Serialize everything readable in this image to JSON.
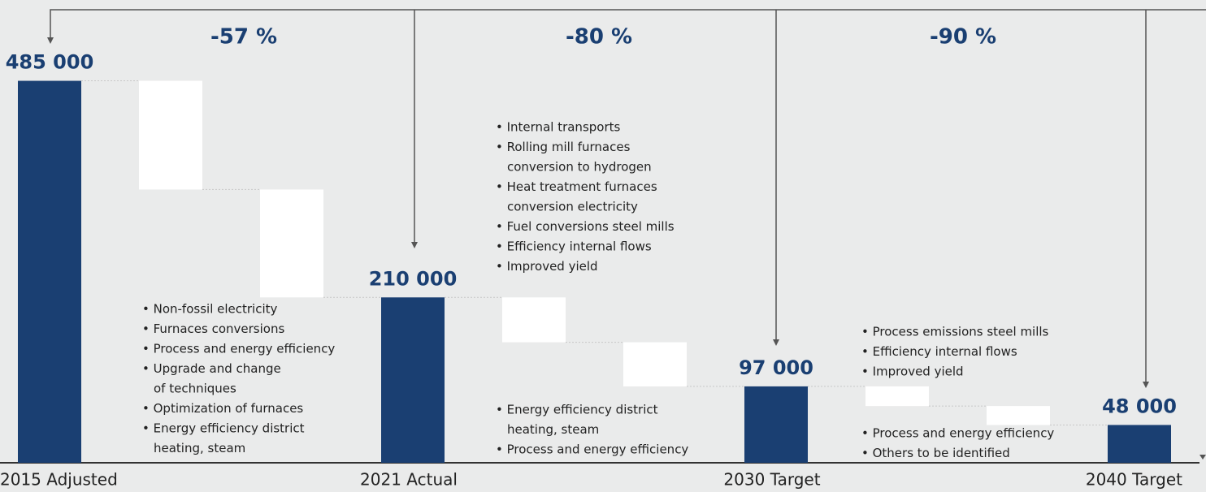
{
  "chart_data": {
    "type": "waterfall",
    "categories": [
      "2015 Adjusted",
      null,
      null,
      "2021 Actual",
      null,
      null,
      "2030 Target",
      null,
      null,
      "2040 Target"
    ],
    "values": [
      485000,
      -138000,
      -137000,
      210000,
      -57000,
      -56000,
      97000,
      -25000,
      -24000,
      48000
    ],
    "value_labels": [
      "485 000",
      null,
      null,
      "210 000",
      null,
      null,
      "97 000",
      null,
      null,
      "48 000"
    ],
    "total_color": "#1a3f72",
    "step_color": "#ffffff",
    "ylim": [
      0,
      500000
    ],
    "reductions": {
      "values": [
        -57,
        -80,
        -90
      ],
      "value_labels": [
        "-57 %",
        "-80 %",
        "-90 %"
      ]
    },
    "notes": [
      {
        "lines": [
          "• Non-fossil electricity",
          "• Furnaces conversions",
          "• Process and energy efficiency",
          "• Upgrade and change",
          "of techniques",
          "• Optimization of furnaces",
          "• Energy efficiency district",
          "heating, steam"
        ]
      },
      {
        "lines": [
          "• Internal transports",
          "• Rolling mill furnaces",
          "conversion to hydrogen",
          "• Heat treatment furnaces",
          "conversion electricity",
          "• Fuel conversions steel mills",
          "• Efficiency internal flows",
          "• Improved yield"
        ]
      },
      {
        "lines": [
          "• Energy efficiency district",
          "heating, steam",
          "• Process and energy efficiency"
        ]
      },
      {
        "lines": [
          "• Process emissions steel mills",
          "• Efficiency internal flows",
          "• Improved yield"
        ]
      },
      {
        "lines": [
          "• Process and energy efficiency",
          "• Others to be identified"
        ]
      }
    ]
  }
}
